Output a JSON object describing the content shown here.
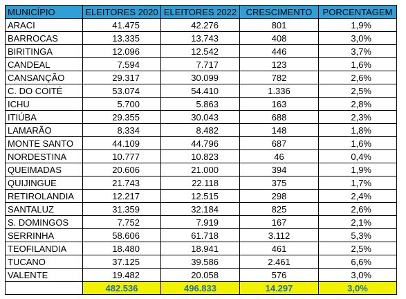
{
  "headers": [
    "MUNICÍPIO",
    "ELEITORES 2020",
    "ELEITORES 2022",
    "CRESCIMENTO",
    "PORCENTAGEM"
  ],
  "rows": [
    {
      "city": "ARACI",
      "e2020": "41.475",
      "e2022": "42.276",
      "growth": "801",
      "pct": "1,9%"
    },
    {
      "city": "BARROCAS",
      "e2020": "13.335",
      "e2022": "13.743",
      "growth": "408",
      "pct": "3,0%"
    },
    {
      "city": "BIRITINGA",
      "e2020": "12.096",
      "e2022": "12.542",
      "growth": "446",
      "pct": "3,7%"
    },
    {
      "city": "CANDEAL",
      "e2020": "7.594",
      "e2022": "7.717",
      "growth": "123",
      "pct": "1,6%"
    },
    {
      "city": "CANSANÇÃO",
      "e2020": "29.317",
      "e2022": "30.099",
      "growth": "782",
      "pct": "2,6%"
    },
    {
      "city": "C. DO COITÉ",
      "e2020": "53.074",
      "e2022": "54.410",
      "growth": "1.336",
      "pct": "2,5%"
    },
    {
      "city": "ICHU",
      "e2020": "5.700",
      "e2022": "5.863",
      "growth": "163",
      "pct": "2,8%"
    },
    {
      "city": "ITIÚBA",
      "e2020": "29.355",
      "e2022": "30.043",
      "growth": "688",
      "pct": "2,3%"
    },
    {
      "city": "LAMARÃO",
      "e2020": "8.334",
      "e2022": "8.482",
      "growth": "148",
      "pct": "1,8%"
    },
    {
      "city": "MONTE SANTO",
      "e2020": "44.109",
      "e2022": "44.796",
      "growth": "687",
      "pct": "1,6%"
    },
    {
      "city": "NORDESTINA",
      "e2020": "10.777",
      "e2022": "10.823",
      "growth": "46",
      "pct": "0,4%"
    },
    {
      "city": "QUEIMADAS",
      "e2020": "20.606",
      "e2022": "21.000",
      "growth": "394",
      "pct": "1,9%"
    },
    {
      "city": "QUIJINGUE",
      "e2020": "21.743",
      "e2022": "22.118",
      "growth": "375",
      "pct": "1,7%"
    },
    {
      "city": "RETIROLANDIA",
      "e2020": "12.217",
      "e2022": "12.515",
      "growth": "298",
      "pct": "2,4%"
    },
    {
      "city": "SANTALUZ",
      "e2020": "31.359",
      "e2022": "32.184",
      "growth": "825",
      "pct": "2,6%"
    },
    {
      "city": "S. DOMINGOS",
      "e2020": "7.752",
      "e2022": "7.919",
      "growth": "167",
      "pct": "2,1%"
    },
    {
      "city": "SERRINHA",
      "e2020": "58.606",
      "e2022": "61.718",
      "growth": "3.112",
      "pct": "5,3%"
    },
    {
      "city": "TEOFILANDIA",
      "e2020": "18.480",
      "e2022": "18.941",
      "growth": "461",
      "pct": "2,5%"
    },
    {
      "city": "TUCANO",
      "e2020": "37.125",
      "e2022": "39.586",
      "growth": "2.461",
      "pct": "6,6%"
    },
    {
      "city": "VALENTE",
      "e2020": "19.482",
      "e2022": "20.058",
      "growth": "576",
      "pct": "3,0%"
    }
  ],
  "totals": {
    "e2020": "482.536",
    "e2022": "496.833",
    "growth": "14.297",
    "pct": "3,0%"
  },
  "colors": {
    "header_bg": "#2f9fd6",
    "highlight": "#f2f200",
    "total_text": "#1f6fb5"
  }
}
